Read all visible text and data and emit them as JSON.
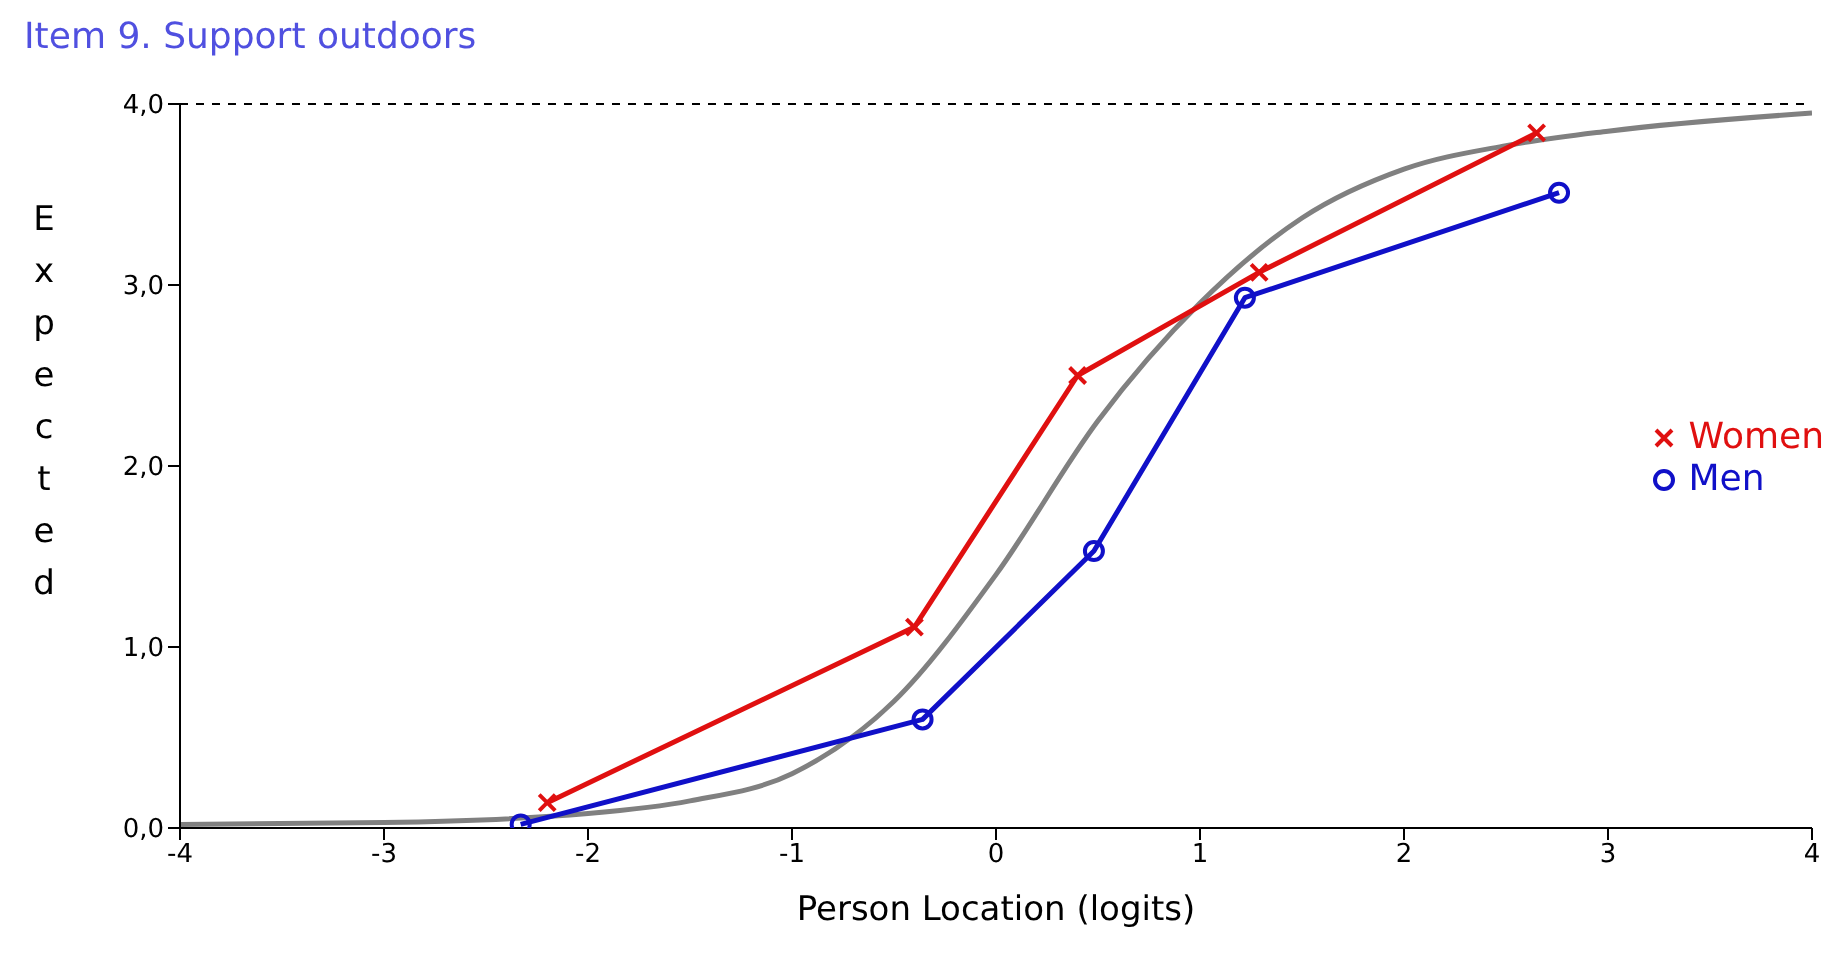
{
  "chart_data": {
    "type": "line",
    "title": "Item 9. Support outdoors",
    "xlabel": "Person Location (logits)",
    "ylabel": "Expected",
    "xlim": [
      -4,
      4
    ],
    "xticks": [
      -4,
      -3,
      -2,
      -1,
      0,
      1,
      2,
      3,
      4
    ],
    "ylim": [
      0,
      4
    ],
    "yticks": [
      {
        "value": 0,
        "label": "0,0"
      },
      {
        "value": 1,
        "label": "1,0"
      },
      {
        "value": 2,
        "label": "2,0"
      },
      {
        "value": 3,
        "label": "3,0"
      },
      {
        "value": 4,
        "label": "4,0"
      }
    ],
    "grid": false,
    "legend": "right",
    "ref_lines": [
      {
        "axis": "y",
        "value": 4,
        "color": "#000000",
        "line_style": "dashed"
      }
    ],
    "series": [
      {
        "color": "#808080",
        "marker": "none",
        "x": [
          -4,
          -3,
          -2,
          -1.5,
          -1,
          -0.5,
          0,
          0.5,
          1,
          1.5,
          2,
          2.5,
          3,
          4
        ],
        "values": [
          0.02,
          0.03,
          0.08,
          0.15,
          0.3,
          0.7,
          1.4,
          2.25,
          2.9,
          3.37,
          3.64,
          3.77,
          3.85,
          3.95
        ]
      },
      {
        "name": "Women",
        "color": "#e01010",
        "marker": "cross",
        "x": [
          -2.2,
          -0.4,
          0.4,
          1.29,
          2.65
        ],
        "values": [
          0.14,
          1.11,
          2.5,
          3.07,
          3.84
        ]
      },
      {
        "name": "Men",
        "color": "#1010c8",
        "marker": "circle",
        "x": [
          -2.33,
          -0.36,
          0.48,
          1.22,
          2.76
        ],
        "values": [
          0.02,
          0.6,
          1.53,
          2.93,
          3.51
        ]
      }
    ]
  }
}
